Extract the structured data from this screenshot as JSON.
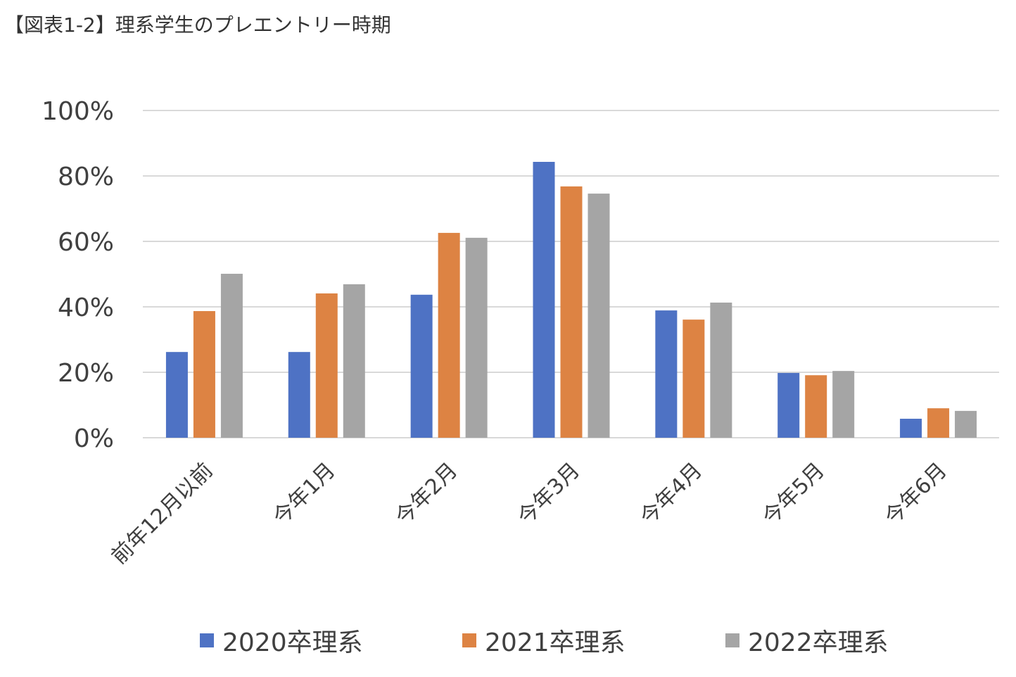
{
  "chart_data": {
    "type": "bar",
    "title": "【図表1-2】理系学生のプレエントリー時期",
    "xlabel": "",
    "ylabel": "",
    "ylim": [
      0,
      100
    ],
    "yticks": [
      "0%",
      "20%",
      "40%",
      "60%",
      "80%",
      "100%"
    ],
    "ytick_values": [
      0,
      20,
      40,
      60,
      80,
      100
    ],
    "grid": true,
    "legend_position": "bottom",
    "categories": [
      "前年12月以前",
      "今年1月",
      "今年2月",
      "今年3月",
      "今年4月",
      "今年5月",
      "今年6月"
    ],
    "series": [
      {
        "name": "2020卒理系",
        "color": "#4e72c4",
        "values": [
          26.2,
          26.2,
          43.7,
          84.3,
          38.9,
          19.8,
          5.8
        ]
      },
      {
        "name": "2021卒理系",
        "color": "#dd8343",
        "values": [
          38.7,
          44.1,
          62.6,
          76.8,
          36.1,
          19.1,
          9.0
        ]
      },
      {
        "name": "2022卒理系",
        "color": "#a5a5a5",
        "values": [
          50.1,
          46.9,
          61.1,
          74.6,
          41.3,
          20.4,
          8.2
        ]
      }
    ]
  }
}
